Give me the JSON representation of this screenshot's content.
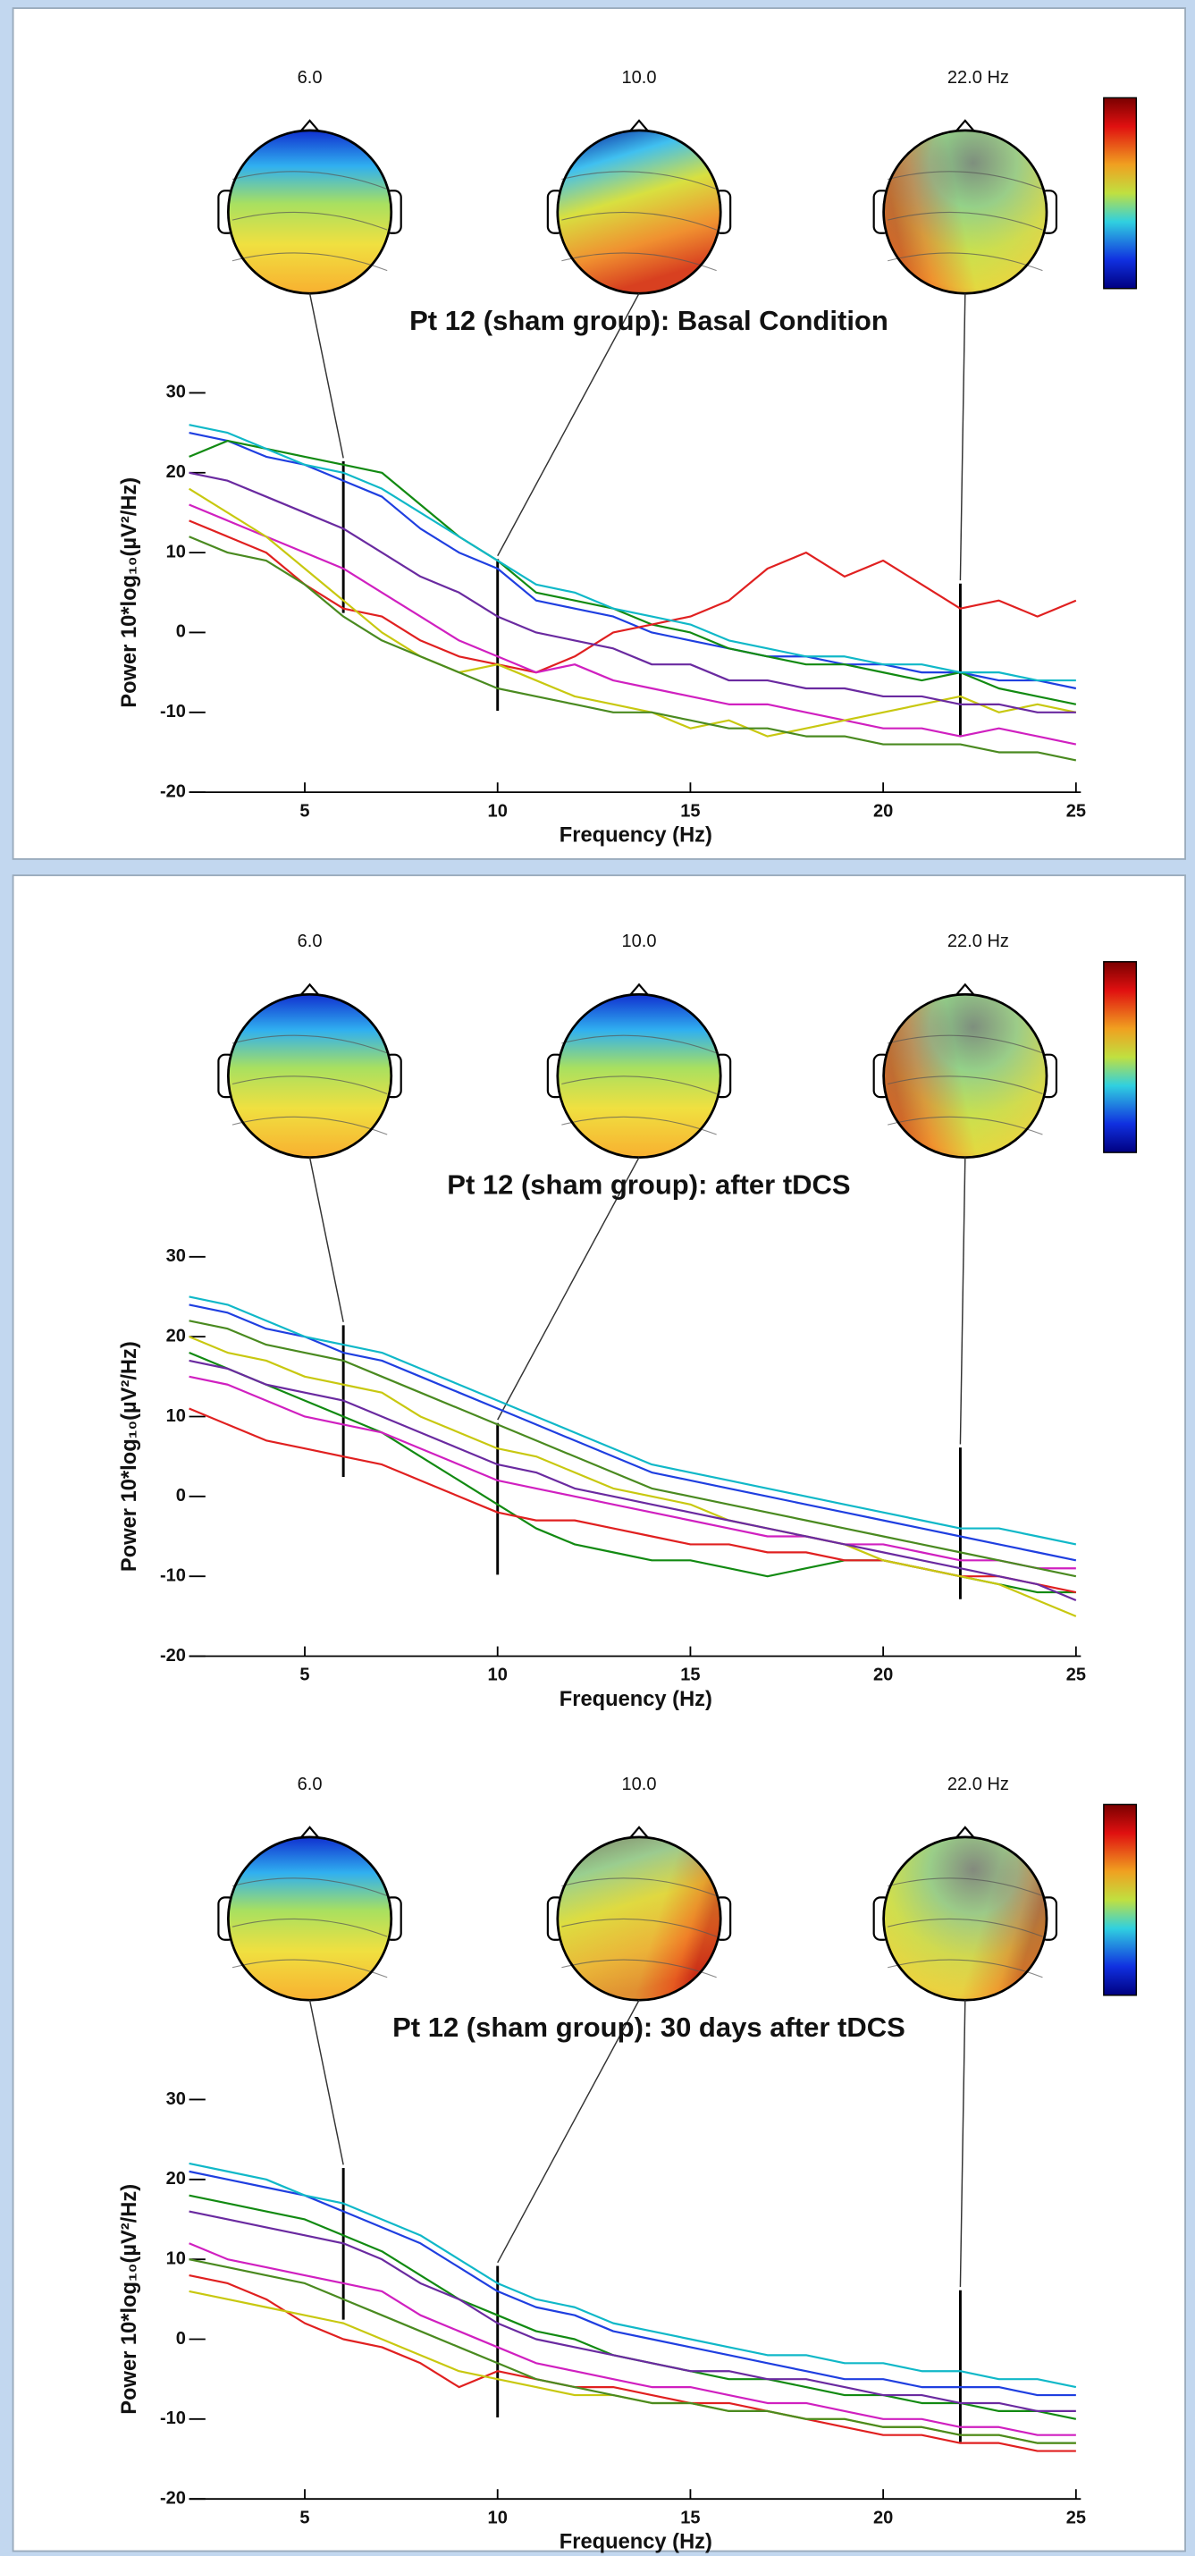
{
  "chart_data": [
    {
      "type": "line",
      "title": "Pt 12 (sham group): Basal Condition",
      "xlabel": "Frequency (Hz)",
      "ylabel": "Power 10*log₁₀(µV²/Hz)",
      "x": [
        2,
        3,
        4,
        5,
        6,
        7,
        8,
        9,
        10,
        11,
        12,
        13,
        14,
        15,
        16,
        17,
        18,
        19,
        20,
        21,
        22,
        23,
        24,
        25
      ],
      "xlim": [
        2,
        25
      ],
      "xticks": [
        5,
        10,
        15,
        20,
        25
      ],
      "ylim": [
        -20,
        30
      ],
      "yticks": [
        -20,
        -10,
        0,
        10,
        20,
        30
      ],
      "topomaps": [
        {
          "value": 6,
          "label": "6.0"
        },
        {
          "value": 10,
          "label": "10.0"
        },
        {
          "value": 22,
          "label": "22.0 Hz"
        }
      ],
      "series": [
        {
          "color": "#1f3fe0",
          "values": [
            25,
            24,
            22,
            21,
            19,
            17,
            13,
            10,
            8,
            4,
            3,
            2,
            0,
            -1,
            -2,
            -3,
            -3,
            -4,
            -4,
            -5,
            -5,
            -6,
            -6,
            -7
          ]
        },
        {
          "color": "#128a12",
          "values": [
            22,
            24,
            23,
            22,
            21,
            20,
            16,
            12,
            9,
            5,
            4,
            3,
            1,
            0,
            -2,
            -3,
            -4,
            -4,
            -5,
            -6,
            -5,
            -7,
            -8,
            -9
          ]
        },
        {
          "color": "#e02020",
          "values": [
            14,
            12,
            10,
            6,
            3,
            2,
            -1,
            -3,
            -4,
            -5,
            -3,
            0,
            1,
            2,
            4,
            8,
            10,
            7,
            9,
            6,
            3,
            4,
            2,
            4
          ]
        },
        {
          "color": "#d020c0",
          "values": [
            16,
            14,
            12,
            10,
            8,
            5,
            2,
            -1,
            -3,
            -5,
            -4,
            -6,
            -7,
            -8,
            -9,
            -9,
            -10,
            -11,
            -12,
            -12,
            -13,
            -12,
            -13,
            -14
          ]
        },
        {
          "color": "#c8c810",
          "values": [
            18,
            15,
            12,
            8,
            4,
            0,
            -3,
            -5,
            -4,
            -6,
            -8,
            -9,
            -10,
            -12,
            -11,
            -13,
            -12,
            -11,
            -10,
            -9,
            -8,
            -10,
            -9,
            -10
          ]
        },
        {
          "color": "#10b8c8",
          "values": [
            26,
            25,
            23,
            21,
            20,
            18,
            15,
            12,
            9,
            6,
            5,
            3,
            2,
            1,
            -1,
            -2,
            -3,
            -3,
            -4,
            -4,
            -5,
            -5,
            -6,
            -6
          ]
        },
        {
          "color": "#4a8a20",
          "values": [
            12,
            10,
            9,
            6,
            2,
            -1,
            -3,
            -5,
            -7,
            -8,
            -9,
            -10,
            -10,
            -11,
            -12,
            -12,
            -13,
            -13,
            -14,
            -14,
            -14,
            -15,
            -15,
            -16
          ]
        },
        {
          "color": "#6a2aa0",
          "values": [
            20,
            19,
            17,
            15,
            13,
            10,
            7,
            5,
            2,
            0,
            -1,
            -2,
            -4,
            -4,
            -6,
            -6,
            -7,
            -7,
            -8,
            -8,
            -9,
            -9,
            -10,
            -10
          ]
        }
      ]
    },
    {
      "type": "line",
      "title": "Pt 12 (sham group): after tDCS",
      "xlabel": "Frequency (Hz)",
      "ylabel": "Power 10*log₁₀(µV²/Hz)",
      "x": [
        2,
        3,
        4,
        5,
        6,
        7,
        8,
        9,
        10,
        11,
        12,
        13,
        14,
        15,
        16,
        17,
        18,
        19,
        20,
        21,
        22,
        23,
        24,
        25
      ],
      "xlim": [
        2,
        25
      ],
      "xticks": [
        5,
        10,
        15,
        20,
        25
      ],
      "ylim": [
        -20,
        30
      ],
      "yticks": [
        -20,
        -10,
        0,
        10,
        20,
        30
      ],
      "topomaps": [
        {
          "value": 6,
          "label": "6.0"
        },
        {
          "value": 10,
          "label": "10.0"
        },
        {
          "value": 22,
          "label": "22.0 Hz"
        }
      ],
      "series": [
        {
          "color": "#1f3fe0",
          "values": [
            24,
            23,
            21,
            20,
            18,
            17,
            15,
            13,
            11,
            9,
            7,
            5,
            3,
            2,
            1,
            0,
            -1,
            -2,
            -3,
            -4,
            -5,
            -6,
            -7,
            -8
          ]
        },
        {
          "color": "#128a12",
          "values": [
            18,
            16,
            14,
            12,
            10,
            8,
            5,
            2,
            -1,
            -4,
            -6,
            -7,
            -8,
            -8,
            -9,
            -10,
            -9,
            -8,
            -8,
            -9,
            -10,
            -11,
            -12,
            -12
          ]
        },
        {
          "color": "#e02020",
          "values": [
            11,
            9,
            7,
            6,
            5,
            4,
            2,
            0,
            -2,
            -3,
            -3,
            -4,
            -5,
            -6,
            -6,
            -7,
            -7,
            -8,
            -8,
            -9,
            -10,
            -10,
            -11,
            -12
          ]
        },
        {
          "color": "#d020c0",
          "values": [
            15,
            14,
            12,
            10,
            9,
            8,
            6,
            4,
            2,
            1,
            0,
            -1,
            -2,
            -3,
            -4,
            -5,
            -5,
            -6,
            -6,
            -7,
            -8,
            -8,
            -9,
            -9
          ]
        },
        {
          "color": "#c8c810",
          "values": [
            20,
            18,
            17,
            15,
            14,
            13,
            10,
            8,
            6,
            5,
            3,
            1,
            0,
            -1,
            -3,
            -4,
            -5,
            -6,
            -8,
            -9,
            -10,
            -11,
            -13,
            -15
          ]
        },
        {
          "color": "#10b8c8",
          "values": [
            25,
            24,
            22,
            20,
            19,
            18,
            16,
            14,
            12,
            10,
            8,
            6,
            4,
            3,
            2,
            1,
            0,
            -1,
            -2,
            -3,
            -4,
            -4,
            -5,
            -6
          ]
        },
        {
          "color": "#4a8a20",
          "values": [
            22,
            21,
            19,
            18,
            17,
            15,
            13,
            11,
            9,
            7,
            5,
            3,
            1,
            0,
            -1,
            -2,
            -3,
            -4,
            -5,
            -6,
            -7,
            -8,
            -9,
            -10
          ]
        },
        {
          "color": "#6a2aa0",
          "values": [
            17,
            16,
            14,
            13,
            12,
            10,
            8,
            6,
            4,
            3,
            1,
            0,
            -1,
            -2,
            -3,
            -4,
            -5,
            -6,
            -7,
            -8,
            -9,
            -10,
            -11,
            -13
          ]
        }
      ]
    },
    {
      "type": "line",
      "title": "Pt 12 (sham group): 30 days after tDCS",
      "xlabel": "Frequency (Hz)",
      "ylabel": "Power 10*log₁₀(µV²/Hz)",
      "x": [
        2,
        3,
        4,
        5,
        6,
        7,
        8,
        9,
        10,
        11,
        12,
        13,
        14,
        15,
        16,
        17,
        18,
        19,
        20,
        21,
        22,
        23,
        24,
        25
      ],
      "xlim": [
        2,
        25
      ],
      "xticks": [
        5,
        10,
        15,
        20,
        25
      ],
      "ylim": [
        -20,
        30
      ],
      "yticks": [
        -20,
        -10,
        0,
        10,
        20,
        30
      ],
      "topomaps": [
        {
          "value": 6,
          "label": "6.0"
        },
        {
          "value": 10,
          "label": "10.0"
        },
        {
          "value": 22,
          "label": "22.0 Hz"
        }
      ],
      "series": [
        {
          "color": "#1f3fe0",
          "values": [
            21,
            20,
            19,
            18,
            16,
            14,
            12,
            9,
            6,
            4,
            3,
            1,
            0,
            -1,
            -2,
            -3,
            -4,
            -5,
            -5,
            -6,
            -6,
            -6,
            -7,
            -7
          ]
        },
        {
          "color": "#128a12",
          "values": [
            18,
            17,
            16,
            15,
            13,
            11,
            8,
            5,
            3,
            1,
            0,
            -2,
            -3,
            -4,
            -5,
            -5,
            -6,
            -7,
            -7,
            -8,
            -8,
            -9,
            -9,
            -10
          ]
        },
        {
          "color": "#e02020",
          "values": [
            8,
            7,
            5,
            2,
            0,
            -1,
            -3,
            -6,
            -4,
            -5,
            -6,
            -6,
            -7,
            -8,
            -8,
            -9,
            -10,
            -11,
            -12,
            -12,
            -13,
            -13,
            -14,
            -14
          ]
        },
        {
          "color": "#d020c0",
          "values": [
            12,
            10,
            9,
            8,
            7,
            6,
            3,
            1,
            -1,
            -3,
            -4,
            -5,
            -6,
            -6,
            -7,
            -8,
            -8,
            -9,
            -10,
            -10,
            -11,
            -11,
            -12,
            -12
          ]
        },
        {
          "color": "#c8c810",
          "values": [
            6,
            5,
            4,
            3,
            2,
            0,
            -2,
            -4,
            -5,
            -6,
            -7,
            -7,
            -8,
            -8,
            -9,
            -9,
            -10,
            -10,
            -11,
            -11,
            -12,
            -12,
            -13,
            -13
          ]
        },
        {
          "color": "#10b8c8",
          "values": [
            22,
            21,
            20,
            18,
            17,
            15,
            13,
            10,
            7,
            5,
            4,
            2,
            1,
            0,
            -1,
            -2,
            -2,
            -3,
            -3,
            -4,
            -4,
            -5,
            -5,
            -6
          ]
        },
        {
          "color": "#4a8a20",
          "values": [
            10,
            9,
            8,
            7,
            5,
            3,
            1,
            -1,
            -3,
            -5,
            -6,
            -7,
            -8,
            -8,
            -9,
            -9,
            -10,
            -10,
            -11,
            -11,
            -12,
            -12,
            -13,
            -13
          ]
        },
        {
          "color": "#6a2aa0",
          "values": [
            16,
            15,
            14,
            13,
            12,
            10,
            7,
            5,
            2,
            0,
            -1,
            -2,
            -3,
            -4,
            -4,
            -5,
            -5,
            -6,
            -7,
            -7,
            -8,
            -8,
            -9,
            -9
          ]
        }
      ]
    }
  ]
}
